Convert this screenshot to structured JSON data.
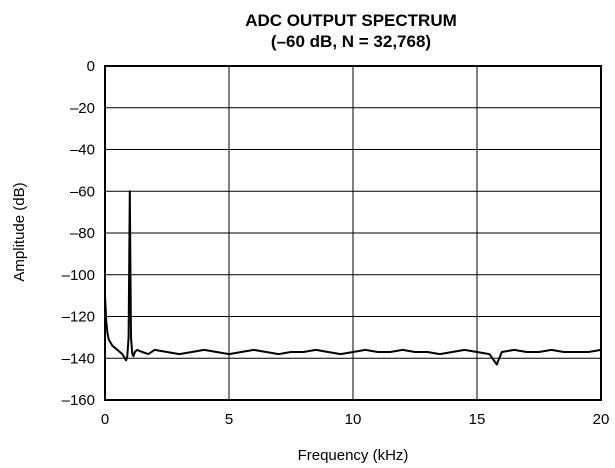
{
  "chart_data": {
    "type": "line",
    "title": "ADC OUTPUT SPECTRUM",
    "subtitle": "(–60 dB, N = 32,768)",
    "xlabel": "Frequency (kHz)",
    "ylabel": "Amplitude (dB)",
    "xlim": [
      0,
      20
    ],
    "ylim": [
      -160,
      0
    ],
    "x_ticks": [
      0,
      5,
      10,
      15,
      20
    ],
    "x_tick_labels": [
      "0",
      "5",
      "10",
      "15",
      "20"
    ],
    "y_ticks": [
      0,
      -20,
      -40,
      -60,
      -80,
      -100,
      -120,
      -140,
      -160
    ],
    "y_tick_labels": [
      "0",
      "–20",
      "–40",
      "–60",
      "–80",
      "–100",
      "–120",
      "–140",
      "–160"
    ],
    "grid": true,
    "series": [
      {
        "color": "#000000",
        "x": [
          0,
          0.05,
          0.1,
          0.15,
          0.2,
          0.3,
          0.4,
          0.5,
          0.6,
          0.7,
          0.8,
          0.85,
          0.9,
          0.95,
          0.98,
          1.0,
          1.02,
          1.05,
          1.1,
          1.15,
          1.2,
          1.3,
          1.5,
          1.75,
          2.0,
          2.5,
          3.0,
          3.5,
          4.0,
          4.5,
          5.0,
          5.5,
          6.0,
          6.5,
          7.0,
          7.5,
          8.0,
          8.5,
          9.0,
          9.5,
          10.0,
          10.5,
          11.0,
          11.5,
          12.0,
          12.5,
          13.0,
          13.5,
          14.0,
          14.5,
          15.0,
          15.5,
          15.8,
          16.0,
          16.5,
          17.0,
          17.5,
          18.0,
          18.5,
          19.0,
          19.5,
          20.0
        ],
        "y": [
          -110,
          -122,
          -128,
          -131,
          -132,
          -134,
          -135,
          -136,
          -137,
          -138,
          -140,
          -141,
          -139,
          -130,
          -90,
          -60,
          -90,
          -130,
          -138,
          -139,
          -137,
          -136,
          -137,
          -138,
          -136,
          -137,
          -138,
          -137,
          -136,
          -137,
          -138,
          -137,
          -136,
          -137,
          -138,
          -137,
          -137,
          -136,
          -137,
          -138,
          -137,
          -136,
          -137,
          -137,
          -136,
          -137,
          -137,
          -138,
          -137,
          -136,
          -137,
          -138,
          -143,
          -137,
          -136,
          -137,
          -137,
          -136,
          -137,
          -137,
          -137,
          -136
        ]
      }
    ]
  }
}
